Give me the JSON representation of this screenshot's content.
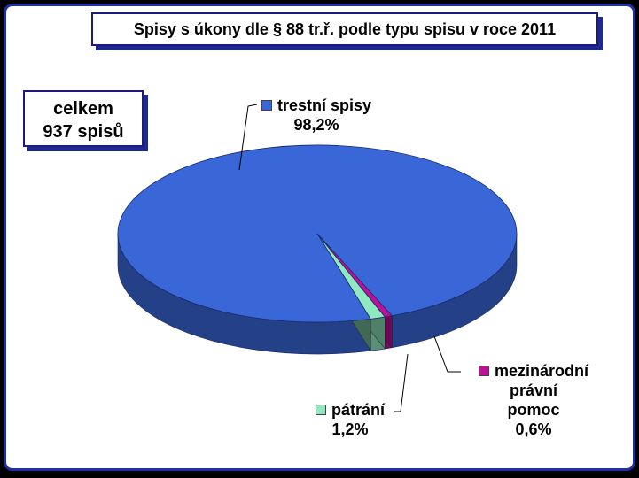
{
  "chart_data": {
    "type": "pie",
    "title": "Spisy s úkony dle § 88 tr.ř. podle typu spisu v roce 2011",
    "annotation": [
      "celkem",
      "937 spisů"
    ],
    "slices": [
      {
        "label": "trestní spisy",
        "value": 98.2,
        "value_label": "98,2%",
        "color": "#3a67d8"
      },
      {
        "label": "mezinárodní právní pomoc",
        "value": 0.6,
        "value_label": "0,6%",
        "color": "#c0109a",
        "label_lines": [
          "mezinárodní",
          "právní",
          "pomoc"
        ]
      },
      {
        "label": "pátrání",
        "value": 1.2,
        "value_label": "1,2%",
        "color": "#8fe8c0"
      }
    ]
  }
}
